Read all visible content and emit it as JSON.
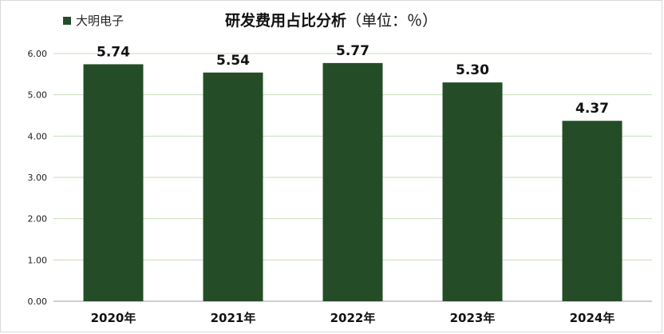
{
  "chart_data": {
    "type": "bar",
    "title": "研发费用占比分析",
    "unit": "（单位：％）",
    "categories": [
      "2020年",
      "2021年",
      "2022年",
      "2023年",
      "2024年"
    ],
    "series": [
      {
        "name": "大明电子",
        "values": [
          5.74,
          5.54,
          5.77,
          5.3,
          4.37
        ]
      }
    ],
    "data_labels": [
      "5.74",
      "5.54",
      "5.77",
      "5.30",
      "4.37"
    ],
    "ylim": [
      0,
      6
    ],
    "yticks": [
      "0.00",
      "1.00",
      "2.00",
      "3.00",
      "4.00",
      "5.00",
      "6.00"
    ],
    "grid": true,
    "legend_position": "top-left",
    "colors": {
      "bar": "#244d27",
      "grid": "#c6dfb9",
      "axis": "#9e9e9e"
    }
  }
}
